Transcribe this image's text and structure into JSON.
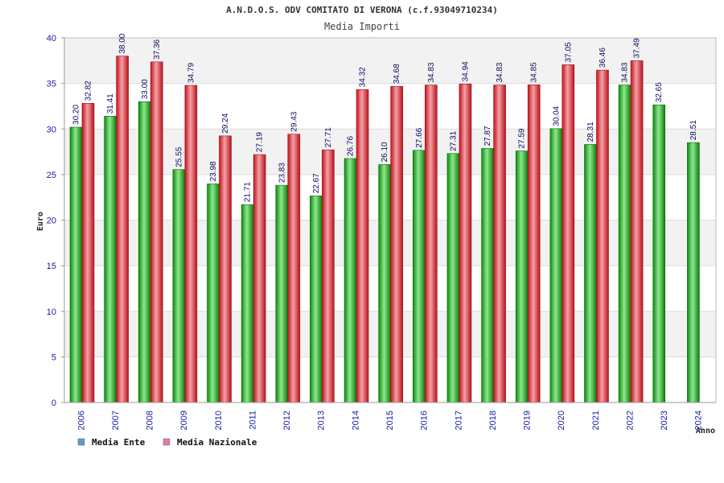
{
  "chart_data": {
    "type": "bar",
    "title": "A.N.D.O.S. ODV COMITATO DI VERONA (c.f.93049710234)",
    "subtitle": "Media Importi",
    "ylabel": "Euro",
    "xlabel": "Anno",
    "ylim": [
      0,
      40
    ],
    "yticks": [
      "0",
      "5",
      "10",
      "15",
      "20",
      "25",
      "30",
      "35",
      "40"
    ],
    "categories": [
      "2006",
      "2007",
      "2008",
      "2009",
      "2010",
      "2011",
      "2012",
      "2013",
      "2014",
      "2015",
      "2016",
      "2017",
      "2018",
      "2019",
      "2020",
      "2021",
      "2022",
      "2023",
      "2024"
    ],
    "series": [
      {
        "name": "Media Ente",
        "legend_color": "#5b9bd5",
        "bar_color": "#15a815",
        "values": [
          30.2,
          31.41,
          33.0,
          25.55,
          23.98,
          21.71,
          23.83,
          22.67,
          26.76,
          26.1,
          27.66,
          27.31,
          27.87,
          27.59,
          30.04,
          28.31,
          34.83,
          32.65,
          28.51
        ],
        "labels": [
          "30.20",
          "31.41",
          "33.00",
          "25.55",
          "23.98",
          "21.71",
          "23.83",
          "22.67",
          "26.76",
          "26.10",
          "27.66",
          "27.31",
          "27.87",
          "27.59",
          "30.04",
          "28.31",
          "34.83",
          "32.65",
          "28.51"
        ]
      },
      {
        "name": "Media Nazionale",
        "legend_color": "#e27ab0",
        "bar_color": "#e0202a",
        "values": [
          32.82,
          38.0,
          37.36,
          34.79,
          29.24,
          27.19,
          29.43,
          27.71,
          34.32,
          34.68,
          34.83,
          34.94,
          34.83,
          34.85,
          37.05,
          36.46,
          37.49,
          null,
          null
        ],
        "labels": [
          "32.82",
          "38.00",
          "37.36",
          "34.79",
          "29.24",
          "27.19",
          "29.43",
          "27.71",
          "34.32",
          "34.68",
          "34.83",
          "34.94",
          "34.83",
          "34.85",
          "37.05",
          "36.46",
          "37.49",
          null,
          null
        ]
      }
    ],
    "grid": true,
    "legend": "bottom-left"
  }
}
